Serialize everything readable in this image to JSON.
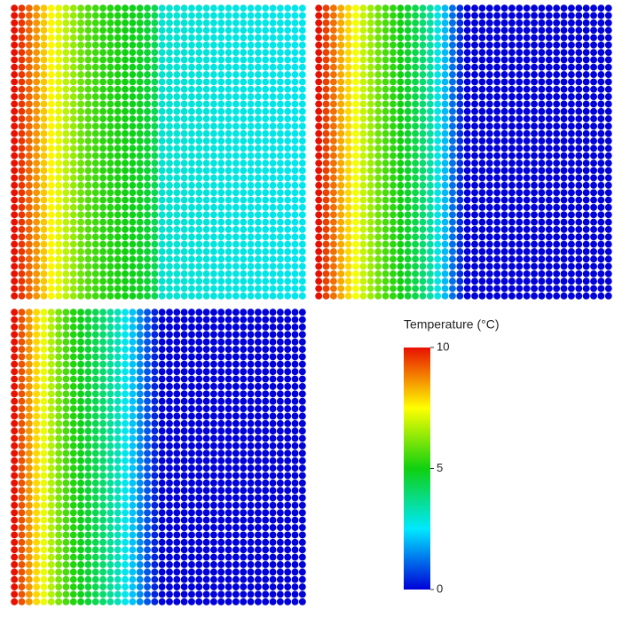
{
  "chart_data": {
    "type": "dot-field",
    "panels": [
      {
        "values": [
          10,
          9.6,
          9.1,
          8.6,
          8.1,
          7.6,
          7.2,
          6.8,
          6.4,
          6.0,
          5.7,
          5.5,
          5.3,
          5.2,
          5.1,
          5.0,
          4.9,
          4.8,
          4.6,
          4.3,
          3.0,
          3.0,
          2.95,
          2.95,
          2.9,
          2.9,
          2.9,
          2.85,
          2.85,
          2.85,
          2.8,
          2.8,
          2.8,
          2.8,
          2.75,
          2.75,
          2.75,
          2.7,
          2.7,
          2.7
        ]
      },
      {
        "values": [
          10,
          9.5,
          9.0,
          8.4,
          7.9,
          7.4,
          6.9,
          6.5,
          6.0,
          5.6,
          5.3,
          5.0,
          4.7,
          4.4,
          4.0,
          3.5,
          2.8,
          2.0,
          1.2,
          0.5,
          0,
          0,
          0,
          0,
          0,
          0,
          0,
          0,
          0,
          0,
          0,
          0,
          0,
          0,
          0,
          0,
          0,
          0,
          0,
          0
        ]
      },
      {
        "values": [
          10,
          9.3,
          8.6,
          7.9,
          7.3,
          6.7,
          6.1,
          5.6,
          5.2,
          4.9,
          4.6,
          4.3,
          4.0,
          3.6,
          3.2,
          2.7,
          2.1,
          1.5,
          0.9,
          0.4,
          0,
          0,
          0,
          0,
          0,
          0,
          0,
          0,
          0,
          0,
          0,
          0,
          0,
          0,
          0,
          0,
          0,
          0,
          0,
          0
        ]
      }
    ],
    "colorbar": {
      "title": "Temperature (°C)",
      "clim": [
        0,
        10
      ],
      "ticks": [
        0,
        5,
        10
      ],
      "colors": [
        "#0000d8",
        "#00e8ff",
        "#10d010",
        "#ffff00",
        "#e81000"
      ]
    }
  }
}
